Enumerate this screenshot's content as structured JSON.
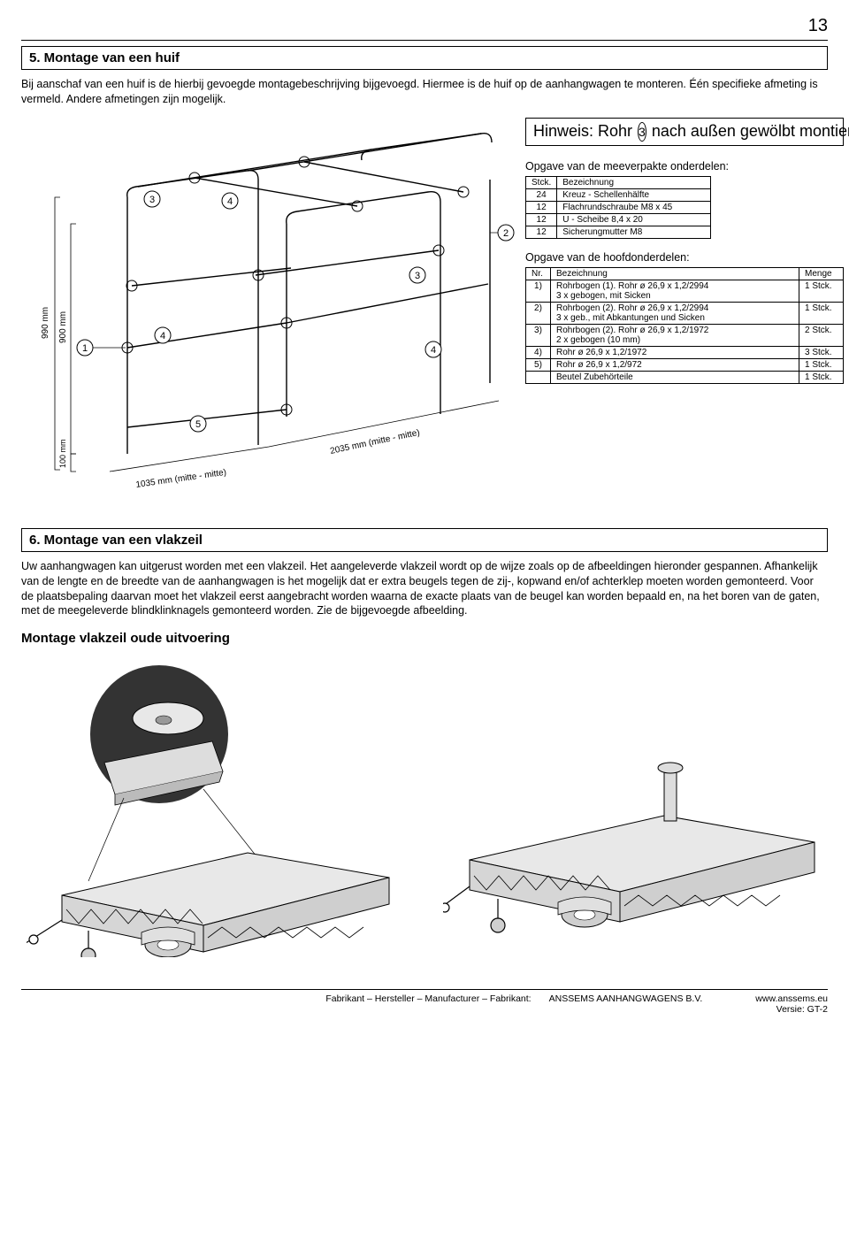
{
  "page_number": "13",
  "section5": {
    "title": "5. Montage van een huif",
    "paragraph": "Bij aanschaf van een huif is de hierbij gevoegde montagebeschrijving bijgevoegd.  Hiermee is de huif op de aanhangwagen te monteren. Één specifieke afmeting is vermeld. Andere afmetingen zijn mogelijk."
  },
  "hinweis": {
    "left": "Hinweis: Rohr",
    "num": "3",
    "right": "nach außen gewölbt montieren!"
  },
  "small_parts": {
    "heading": "Opgave van de meeverpakte onderdelen:",
    "header": [
      "Stck.",
      "Bezeichnung"
    ],
    "rows": [
      [
        "24",
        "Kreuz - Schellenhälfte"
      ],
      [
        "12",
        "Flachrundschraube M8 x 45"
      ],
      [
        "12",
        "U - Scheibe 8,4 x 20"
      ],
      [
        "12",
        "Sicherungmutter M8"
      ]
    ]
  },
  "main_parts": {
    "heading": "Opgave van de hoofdonderdelen:",
    "header": [
      "Nr.",
      "Bezeichnung",
      "Menge"
    ],
    "rows": [
      [
        "1)",
        "Rohrbogen (1). Rohr ø 26,9 x 1,2/2994\n3 x gebogen, mit Sicken",
        "1 Stck."
      ],
      [
        "2)",
        "Rohrbogen (2). Rohr ø 26,9 x 1,2/2994\n3 x geb., mit Abkantungen und Sicken",
        "1 Stck."
      ],
      [
        "3)",
        "Rohrbogen (2). Rohr ø 26,9 x 1,2/1972\n2 x gebogen (10 mm)",
        "2 Stck."
      ],
      [
        "4)",
        "Rohr ø 26,9 x 1,2/1972",
        "3 Stck."
      ],
      [
        "5)",
        "Rohr ø 26,9 x 1,2/972",
        "1 Stck."
      ],
      [
        "",
        "Beutel Zubehörteile",
        "1 Stck."
      ]
    ]
  },
  "dims": {
    "h_outer": "990 mm",
    "h_inner": "900 mm",
    "h_small": "100 mm",
    "w_front": "1035 mm (mitte - mitte)",
    "w_side": "2035 mm (mitte - mitte)"
  },
  "callouts": [
    "1",
    "2",
    "3",
    "3",
    "4",
    "4",
    "4",
    "5"
  ],
  "section6": {
    "title": "6. Montage van een vlakzeil",
    "paragraph": "Uw aanhangwagen kan uitgerust worden met een vlakzeil. Het aangeleverde vlakzeil wordt op de wijze zoals op de afbeeldingen hieronder gespannen. Afhankelijk van de lengte en de breedte van de aanhangwagen is het mogelijk dat er extra beugels tegen de zij-, kopwand en/of achterklep moeten worden gemonteerd. Voor de plaatsbepaling daarvan moet het vlakzeil eerst aangebracht worden waarna de exacte plaats van de beugel kan worden bepaald en, na het boren van de gaten, met de meegeleverde blindklinknagels gemonteerd worden. Zie de bijgevoegde afbeelding.",
    "subheading": "Montage vlakzeil oude uitvoering"
  },
  "footer": {
    "left": "Fabrikant – Hersteller – Manufacturer – Fabrikant:",
    "mid": "ANSSEMS AANHANGWAGENS B.V.",
    "url": "www.anssems.eu",
    "version": "Versie: GT-2"
  },
  "colors": {
    "stroke": "#000000",
    "fill_light": "#f2f2f2",
    "fill_cover": "#e8e8e8",
    "fill_wheel": "#cfcfcf"
  }
}
